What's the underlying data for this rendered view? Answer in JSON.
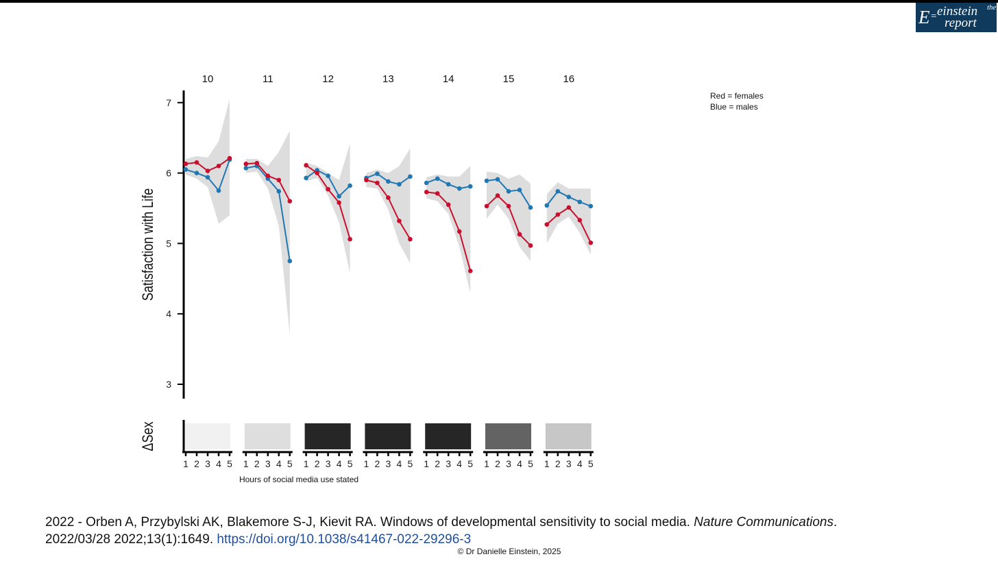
{
  "logo": {
    "e": "E",
    "eq": "=",
    "the": "the",
    "einstein": "einstein",
    "report": "report"
  },
  "legend": {
    "red": "Red = females",
    "blue": "Blue = males"
  },
  "colors": {
    "females": "#c8102e",
    "males": "#1f77b4",
    "band": "#d2d2d2"
  },
  "caption": {
    "line1_prefix": "2022 - Orben A, Przybylski AK, Blakemore S-J, Kievit RA. Windows of developmental sensitivity to social media. ",
    "journal": "Nature Communications",
    "line1_suffix": ".",
    "line2_prefix": "2022/03/28 2022;13(1):1649. ",
    "doi": "https://doi.org/10.1038/s41467-022-29296-3"
  },
  "copyright": "© Dr Danielle Einstein, 2025",
  "chart_data": {
    "type": "line",
    "ylabel": "Satisfaction with Life",
    "xlabel": "Hours of social media use stated",
    "ylim": [
      2.85,
      7.2
    ],
    "yticks": [
      "3",
      "4",
      "5",
      "6",
      "7"
    ],
    "x": [
      1,
      2,
      3,
      4,
      5
    ],
    "xtick_labels": [
      "1",
      "2",
      "3",
      "4",
      "5"
    ],
    "lower_panel_label": "ΔSex",
    "facets": [
      {
        "age": "10",
        "females": [
          6.13,
          6.15,
          6.03,
          6.1,
          6.21
        ],
        "males": [
          6.05,
          6.0,
          5.94,
          5.75,
          6.19
        ],
        "band_upper": [
          6.2,
          6.24,
          6.22,
          6.45,
          7.05
        ],
        "band_lower": [
          5.98,
          5.92,
          5.8,
          5.28,
          5.4
        ],
        "delta_sex_shade": "#f1f1f1"
      },
      {
        "age": "11",
        "females": [
          6.13,
          6.14,
          5.96,
          5.9,
          5.6
        ],
        "males": [
          6.07,
          6.1,
          5.92,
          5.74,
          4.75
        ],
        "band_upper": [
          6.2,
          6.2,
          6.1,
          6.3,
          6.6
        ],
        "band_lower": [
          6.0,
          6.02,
          5.78,
          5.25,
          3.7
        ],
        "delta_sex_shade": "#dedede"
      },
      {
        "age": "12",
        "females": [
          6.11,
          6.0,
          5.77,
          5.58,
          5.06
        ],
        "males": [
          5.93,
          6.04,
          5.96,
          5.67,
          5.82
        ],
        "band_upper": [
          6.15,
          6.1,
          6.0,
          5.9,
          6.42
        ],
        "band_lower": [
          5.88,
          5.93,
          5.68,
          5.3,
          4.58
        ],
        "delta_sex_shade": "#262626"
      },
      {
        "age": "13",
        "females": [
          5.9,
          5.86,
          5.65,
          5.32,
          5.06
        ],
        "males": [
          5.93,
          5.99,
          5.88,
          5.84,
          5.95
        ],
        "band_upper": [
          6.0,
          6.05,
          6.0,
          6.1,
          6.35
        ],
        "band_lower": [
          5.8,
          5.78,
          5.48,
          5.0,
          4.72
        ],
        "delta_sex_shade": "#262626"
      },
      {
        "age": "14",
        "females": [
          5.73,
          5.71,
          5.55,
          5.17,
          4.61
        ],
        "males": [
          5.86,
          5.92,
          5.84,
          5.78,
          5.81
        ],
        "band_upper": [
          5.94,
          5.98,
          5.95,
          5.95,
          6.1
        ],
        "band_lower": [
          5.64,
          5.6,
          5.42,
          4.95,
          4.3
        ],
        "delta_sex_shade": "#262626"
      },
      {
        "age": "15",
        "females": [
          5.53,
          5.68,
          5.53,
          5.13,
          4.97
        ],
        "males": [
          5.89,
          5.91,
          5.74,
          5.76,
          5.51
        ],
        "band_upper": [
          6.02,
          6.0,
          5.92,
          5.98,
          5.85
        ],
        "band_lower": [
          5.35,
          5.55,
          5.35,
          4.95,
          4.75
        ],
        "delta_sex_shade": "#636363"
      },
      {
        "age": "16",
        "females": [
          5.27,
          5.41,
          5.51,
          5.33,
          5.01
        ],
        "males": [
          5.54,
          5.74,
          5.66,
          5.59,
          5.53
        ],
        "band_upper": [
          5.7,
          5.87,
          5.78,
          5.78,
          5.78
        ],
        "band_lower": [
          5.0,
          5.28,
          5.38,
          5.15,
          4.84
        ],
        "delta_sex_shade": "#c7c7c7"
      }
    ]
  }
}
